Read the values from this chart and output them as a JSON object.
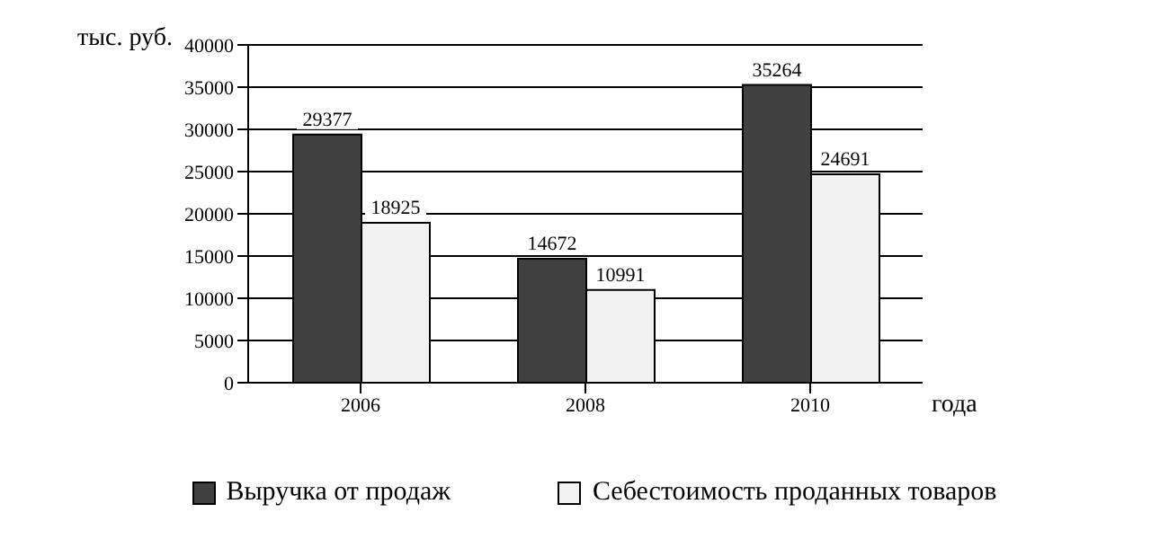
{
  "chart_data": {
    "type": "bar",
    "ylabel": "тыс. руб.",
    "xlabel": "года",
    "categories": [
      "2006",
      "2008",
      "2010"
    ],
    "series": [
      {
        "name": "Выручка от продаж",
        "color": "#404040",
        "values": [
          29377,
          14672,
          35264
        ]
      },
      {
        "name": "Себестоимость проданных товаров",
        "color": "#f2f2f2",
        "values": [
          18925,
          10991,
          24691
        ]
      }
    ],
    "ylim": [
      0,
      40000
    ],
    "yticks": [
      0,
      5000,
      10000,
      15000,
      20000,
      25000,
      30000,
      35000,
      40000
    ],
    "grid": "y",
    "legend": "bottom",
    "data_labels": true
  }
}
